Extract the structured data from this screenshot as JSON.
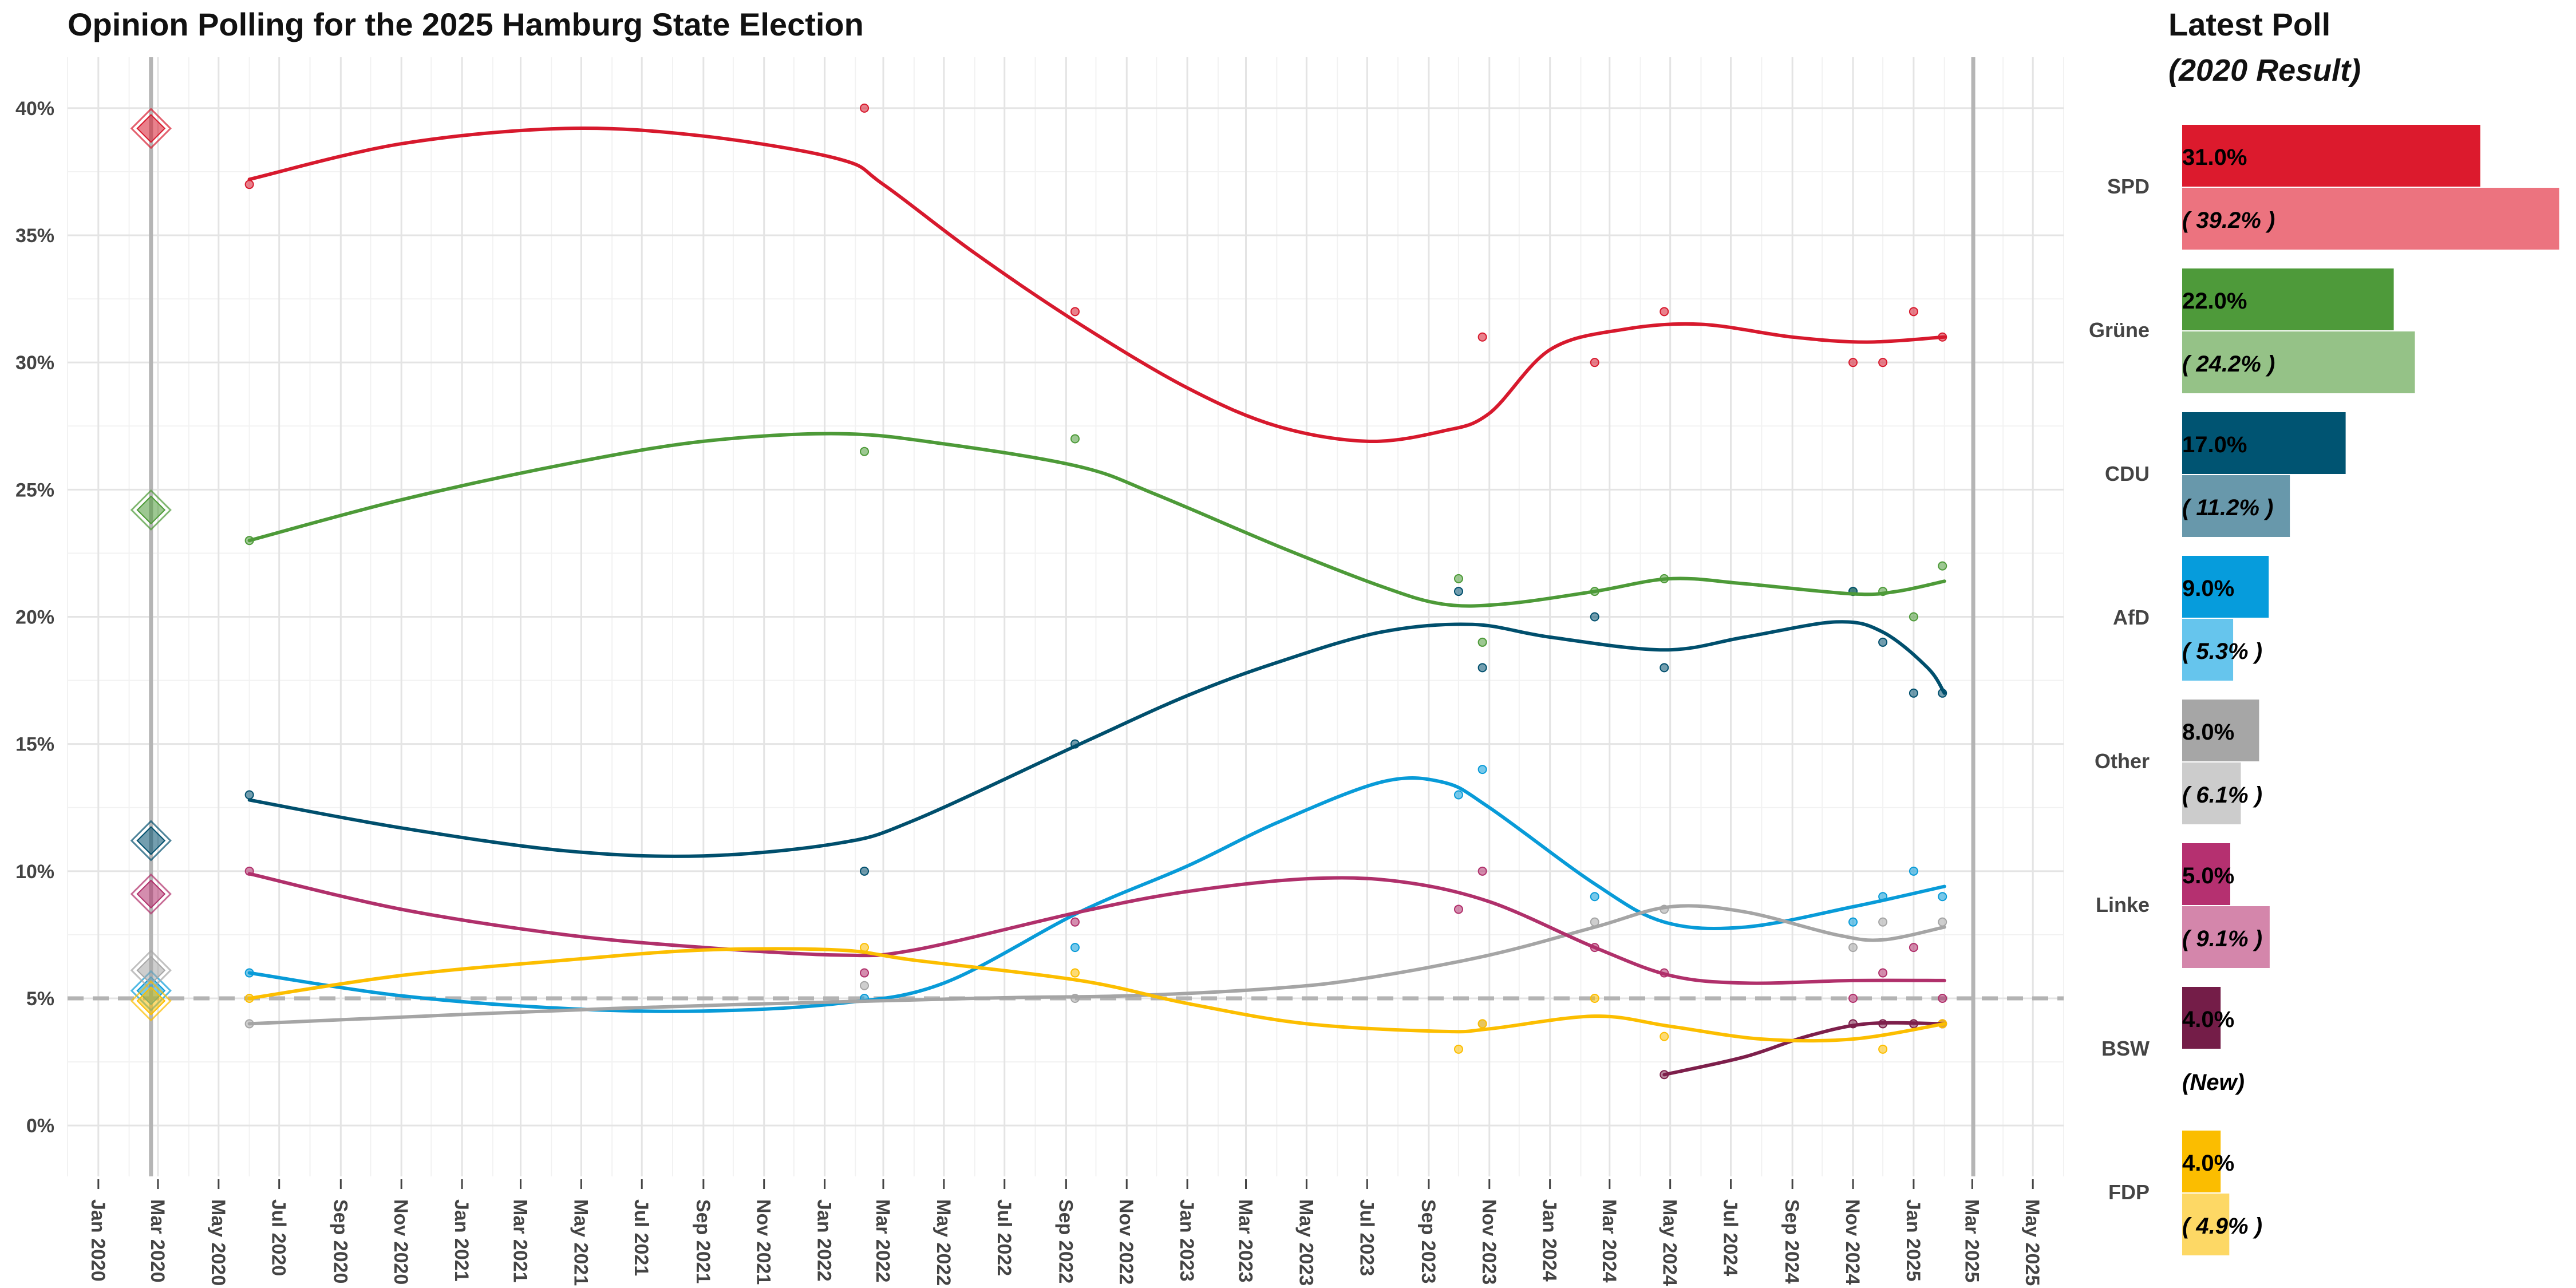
{
  "chart_data": [
    {
      "type": "line",
      "title": "Opinion Polling for the 2025 Hamburg State Election",
      "xlabel": "",
      "ylabel": "",
      "xlim": [
        "2019-12-01",
        "2025-06-01"
      ],
      "ylim": [
        -2,
        42
      ],
      "grid": true,
      "legend": "none",
      "x_ticks": [
        "Jan 2020",
        "Mar 2020",
        "May 2020",
        "Jul 2020",
        "Sep 2020",
        "Nov 2020",
        "Jan 2021",
        "Mar 2021",
        "May 2021",
        "Jul 2021",
        "Sep 2021",
        "Nov 2021",
        "Jan 2022",
        "Mar 2022",
        "May 2022",
        "Jul 2022",
        "Sep 2022",
        "Nov 2022",
        "Jan 2023",
        "Mar 2023",
        "May 2023",
        "Jul 2023",
        "Sep 2023",
        "Nov 2023",
        "Jan 2024",
        "Mar 2024",
        "May 2024",
        "Jul 2024",
        "Sep 2024",
        "Nov 2024",
        "Jan 2025",
        "Mar 2025",
        "May 2025"
      ],
      "y_ticks": [
        {
          "value": 0,
          "label": "0%"
        },
        {
          "value": 5,
          "label": "5%"
        },
        {
          "value": 10,
          "label": "10%"
        },
        {
          "value": 15,
          "label": "15%"
        },
        {
          "value": 20,
          "label": "20%"
        },
        {
          "value": 25,
          "label": "25%"
        },
        {
          "value": 30,
          "label": "30%"
        },
        {
          "value": 35,
          "label": "35%"
        },
        {
          "value": 40,
          "label": "40%"
        }
      ],
      "threshold": 5,
      "previous_election_date": "2020-02-23",
      "election_date": "2025-03-02",
      "series": [
        {
          "name": "SPD",
          "color": "#d7192d",
          "result_2020": 39.2,
          "trend": [
            [
              "2020-06-01",
              37.2
            ],
            [
              "2020-11-01",
              38.6
            ],
            [
              "2021-04-15",
              39.2
            ],
            [
              "2021-09-01",
              38.9
            ],
            [
              "2022-01-15",
              38.0
            ],
            [
              "2022-03-01",
              37.0
            ],
            [
              "2022-06-01",
              34.3
            ],
            [
              "2022-09-15",
              31.5
            ],
            [
              "2023-01-01",
              29.0
            ],
            [
              "2023-04-01",
              27.5
            ],
            [
              "2023-07-01",
              26.9
            ],
            [
              "2023-09-15",
              27.3
            ],
            [
              "2023-11-01",
              28.0
            ],
            [
              "2024-01-01",
              30.5
            ],
            [
              "2024-03-15",
              31.3
            ],
            [
              "2024-06-01",
              31.5
            ],
            [
              "2024-09-01",
              31.0
            ],
            [
              "2024-11-15",
              30.8
            ],
            [
              "2025-02-01",
              31.0
            ]
          ],
          "polls": [
            [
              "2020-06-01",
              37
            ],
            [
              "2022-02-10",
              40
            ],
            [
              "2022-09-10",
              32
            ],
            [
              "2023-10-25",
              31
            ],
            [
              "2024-02-15",
              30
            ],
            [
              "2024-04-25",
              32
            ],
            [
              "2024-11-01",
              30
            ],
            [
              "2024-12-01",
              30
            ],
            [
              "2025-01-01",
              32
            ],
            [
              "2025-01-30",
              31
            ]
          ]
        },
        {
          "name": "Grüne",
          "color": "#4d9a38",
          "result_2020": 24.2,
          "trend": [
            [
              "2020-06-01",
              23.0
            ],
            [
              "2020-11-01",
              24.6
            ],
            [
              "2021-04-15",
              26.0
            ],
            [
              "2021-09-01",
              26.9
            ],
            [
              "2022-01-15",
              27.2
            ],
            [
              "2022-05-01",
              26.8
            ],
            [
              "2022-09-15",
              25.9
            ],
            [
              "2022-12-01",
              24.8
            ],
            [
              "2023-04-01",
              22.8
            ],
            [
              "2023-07-15",
              21.2
            ],
            [
              "2023-09-15",
              20.5
            ],
            [
              "2023-11-15",
              20.5
            ],
            [
              "2024-02-15",
              21.0
            ],
            [
              "2024-05-01",
              21.5
            ],
            [
              "2024-07-15",
              21.3
            ],
            [
              "2024-11-01",
              20.9
            ],
            [
              "2024-12-15",
              21.0
            ],
            [
              "2025-02-01",
              21.4
            ]
          ],
          "polls": [
            [
              "2020-06-01",
              23
            ],
            [
              "2022-02-10",
              26.5
            ],
            [
              "2022-09-10",
              27
            ],
            [
              "2023-10-01",
              21.5
            ],
            [
              "2023-10-25",
              19
            ],
            [
              "2024-02-15",
              21
            ],
            [
              "2024-04-25",
              21.5
            ],
            [
              "2024-11-01",
              21
            ],
            [
              "2024-12-01",
              21
            ],
            [
              "2025-01-01",
              20
            ],
            [
              "2025-01-30",
              22
            ]
          ]
        },
        {
          "name": "CDU",
          "color": "#004f6d",
          "result_2020": 11.2,
          "trend": [
            [
              "2020-06-01",
              12.8
            ],
            [
              "2020-11-01",
              11.7
            ],
            [
              "2021-04-15",
              10.8
            ],
            [
              "2021-09-01",
              10.6
            ],
            [
              "2022-01-15",
              11.1
            ],
            [
              "2022-04-01",
              12.0
            ],
            [
              "2022-09-15",
              15.0
            ],
            [
              "2023-01-01",
              16.9
            ],
            [
              "2023-04-01",
              18.2
            ],
            [
              "2023-07-15",
              19.4
            ],
            [
              "2023-10-15",
              19.7
            ],
            [
              "2024-01-01",
              19.2
            ],
            [
              "2024-04-25",
              18.7
            ],
            [
              "2024-07-15",
              19.2
            ],
            [
              "2024-10-15",
              19.8
            ],
            [
              "2024-12-01",
              19.4
            ],
            [
              "2025-01-15",
              18.0
            ],
            [
              "2025-02-01",
              17.0
            ]
          ],
          "polls": [
            [
              "2020-06-01",
              13
            ],
            [
              "2022-02-10",
              10
            ],
            [
              "2022-09-10",
              15
            ],
            [
              "2023-10-01",
              21
            ],
            [
              "2023-10-25",
              18
            ],
            [
              "2024-02-15",
              20
            ],
            [
              "2024-04-25",
              18
            ],
            [
              "2024-11-01",
              21
            ],
            [
              "2024-12-01",
              19
            ],
            [
              "2025-01-01",
              17
            ],
            [
              "2025-01-30",
              17
            ]
          ]
        },
        {
          "name": "AfD",
          "color": "#089bd8",
          "result_2020": 5.3,
          "trend": [
            [
              "2020-06-01",
              6.0
            ],
            [
              "2020-11-01",
              5.1
            ],
            [
              "2021-04-15",
              4.6
            ],
            [
              "2021-09-01",
              4.5
            ],
            [
              "2022-01-15",
              4.8
            ],
            [
              "2022-05-01",
              5.6
            ],
            [
              "2022-09-15",
              8.4
            ],
            [
              "2023-01-01",
              10.2
            ],
            [
              "2023-04-01",
              11.9
            ],
            [
              "2023-07-15",
              13.5
            ],
            [
              "2023-09-15",
              13.5
            ],
            [
              "2023-11-01",
              12.5
            ],
            [
              "2024-02-15",
              9.5
            ],
            [
              "2024-04-25",
              8.0
            ],
            [
              "2024-07-15",
              7.8
            ],
            [
              "2024-11-01",
              8.6
            ],
            [
              "2025-02-01",
              9.4
            ]
          ],
          "polls": [
            [
              "2020-06-01",
              6
            ],
            [
              "2022-02-10",
              5
            ],
            [
              "2022-09-10",
              7
            ],
            [
              "2023-10-01",
              13
            ],
            [
              "2023-10-25",
              14
            ],
            [
              "2024-02-15",
              9
            ],
            [
              "2024-11-01",
              8
            ],
            [
              "2024-12-01",
              9
            ],
            [
              "2025-01-01",
              10
            ],
            [
              "2025-01-30",
              9
            ]
          ]
        },
        {
          "name": "Other",
          "color": "#a5a5a5",
          "result_2020": 6.1,
          "trend": [
            [
              "2020-06-01",
              4.0
            ],
            [
              "2021-06-01",
              4.6
            ],
            [
              "2022-06-01",
              5.0
            ],
            [
              "2022-11-01",
              5.1
            ],
            [
              "2023-04-01",
              5.4
            ],
            [
              "2023-07-01",
              5.8
            ],
            [
              "2023-11-01",
              6.7
            ],
            [
              "2024-02-15",
              7.8
            ],
            [
              "2024-05-01",
              8.6
            ],
            [
              "2024-07-15",
              8.4
            ],
            [
              "2024-10-15",
              7.5
            ],
            [
              "2024-12-01",
              7.3
            ],
            [
              "2025-02-01",
              7.8
            ]
          ],
          "polls": [
            [
              "2020-06-01",
              4
            ],
            [
              "2022-02-10",
              5.5
            ],
            [
              "2022-09-10",
              5
            ],
            [
              "2023-10-25",
              4
            ],
            [
              "2024-02-15",
              8
            ],
            [
              "2024-04-25",
              8.5
            ],
            [
              "2024-11-01",
              7
            ],
            [
              "2024-12-01",
              8
            ],
            [
              "2025-01-30",
              8
            ]
          ]
        },
        {
          "name": "Linke",
          "color": "#b0306b",
          "result_2020": 9.1,
          "trend": [
            [
              "2020-06-01",
              9.9
            ],
            [
              "2020-11-01",
              8.5
            ],
            [
              "2021-04-15",
              7.5
            ],
            [
              "2021-09-01",
              7.0
            ],
            [
              "2022-01-15",
              6.7
            ],
            [
              "2022-04-01",
              6.9
            ],
            [
              "2022-09-15",
              8.4
            ],
            [
              "2023-01-01",
              9.2
            ],
            [
              "2023-05-01",
              9.7
            ],
            [
              "2023-08-01",
              9.6
            ],
            [
              "2023-11-01",
              8.8
            ],
            [
              "2024-02-15",
              7.0
            ],
            [
              "2024-05-01",
              5.9
            ],
            [
              "2024-07-15",
              5.6
            ],
            [
              "2024-11-01",
              5.7
            ],
            [
              "2025-02-01",
              5.7
            ]
          ],
          "polls": [
            [
              "2020-06-01",
              10
            ],
            [
              "2022-02-10",
              6
            ],
            [
              "2022-09-10",
              8
            ],
            [
              "2023-10-01",
              8.5
            ],
            [
              "2023-10-25",
              10
            ],
            [
              "2024-02-15",
              7
            ],
            [
              "2024-04-25",
              6
            ],
            [
              "2024-11-01",
              5
            ],
            [
              "2024-12-01",
              6
            ],
            [
              "2025-01-01",
              7
            ],
            [
              "2025-01-30",
              5
            ]
          ]
        },
        {
          "name": "BSW",
          "color": "#7d1f4b",
          "result_2020": null,
          "trend": [
            [
              "2024-04-25",
              2.0
            ],
            [
              "2024-07-15",
              2.7
            ],
            [
              "2024-09-15",
              3.5
            ],
            [
              "2024-11-15",
              4.0
            ],
            [
              "2025-02-01",
              4.0
            ]
          ],
          "polls": [
            [
              "2024-04-25",
              2
            ],
            [
              "2024-11-01",
              4
            ],
            [
              "2024-12-01",
              4
            ],
            [
              "2025-01-01",
              4
            ],
            [
              "2025-01-30",
              4
            ]
          ]
        },
        {
          "name": "FDP",
          "color": "#fcbe00",
          "result_2020": 4.9,
          "trend": [
            [
              "2020-06-01",
              5.0
            ],
            [
              "2020-11-01",
              5.9
            ],
            [
              "2021-04-15",
              6.5
            ],
            [
              "2021-09-01",
              6.9
            ],
            [
              "2022-01-15",
              6.9
            ],
            [
              "2022-04-01",
              6.5
            ],
            [
              "2022-09-15",
              5.7
            ],
            [
              "2023-01-01",
              4.8
            ],
            [
              "2023-05-01",
              4.0
            ],
            [
              "2023-09-15",
              3.7
            ],
            [
              "2023-11-01",
              3.8
            ],
            [
              "2024-02-15",
              4.3
            ],
            [
              "2024-05-01",
              3.9
            ],
            [
              "2024-08-01",
              3.4
            ],
            [
              "2024-11-01",
              3.4
            ],
            [
              "2025-02-01",
              4.0
            ]
          ],
          "polls": [
            [
              "2020-06-01",
              5
            ],
            [
              "2022-02-10",
              7
            ],
            [
              "2022-09-10",
              6
            ],
            [
              "2023-10-01",
              3
            ],
            [
              "2023-10-25",
              4
            ],
            [
              "2024-02-15",
              5
            ],
            [
              "2024-04-25",
              3.5
            ],
            [
              "2024-12-01",
              3
            ],
            [
              "2025-01-30",
              4
            ]
          ]
        }
      ]
    },
    {
      "type": "bar",
      "title": "Latest Poll",
      "subtitle": "(2020 Result)",
      "series": [
        {
          "name": "Latest Poll",
          "values": [
            31.0,
            22.0,
            17.0,
            9.0,
            8.0,
            5.0,
            4.0,
            4.0
          ]
        },
        {
          "name": "2020 Result",
          "values": [
            39.2,
            24.2,
            11.2,
            5.3,
            6.1,
            9.1,
            null,
            4.9
          ]
        }
      ],
      "categories": [
        "SPD",
        "Grüne",
        "CDU",
        "AfD",
        "Other",
        "Linke",
        "BSW",
        "FDP"
      ],
      "labels_latest": [
        "31.0%",
        "22.0%",
        "17.0%",
        "9.0%",
        "8.0%",
        "5.0%",
        "4.0%",
        "4.0%"
      ],
      "labels_2020": [
        "( 39.2% )",
        "( 24.2% )",
        "( 11.2% )",
        "( 5.3% )",
        "( 6.1% )",
        "( 9.1% )",
        "(New)",
        "( 4.9% )"
      ],
      "colors_latest": [
        "#dc1a2d",
        "#4e9a3a",
        "#005472",
        "#069cdc",
        "#a6a6a6",
        "#b53070",
        "#741d48",
        "#fbbd00"
      ],
      "colors_2020": [
        "#ec737f",
        "#95c287",
        "#6898ab",
        "#66c5ed",
        "#cccccc",
        "#d486ab",
        null,
        "#fdd865"
      ]
    }
  ]
}
